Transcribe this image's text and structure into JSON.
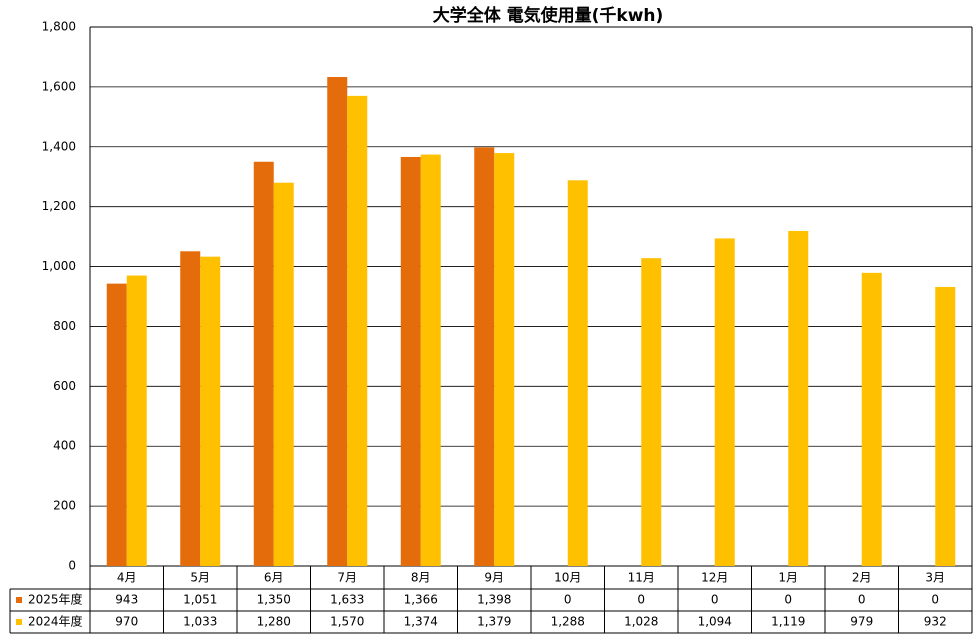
{
  "chart_data": {
    "type": "bar",
    "title": "大学全体 電気使用量(千kwh)",
    "categories": [
      "4月",
      "5月",
      "6月",
      "7月",
      "8月",
      "9月",
      "10月",
      "11月",
      "12月",
      "1月",
      "2月",
      "3月"
    ],
    "series": [
      {
        "name": "2025年度",
        "color": "#e46c0a",
        "values": [
          943,
          1051,
          1350,
          1633,
          1366,
          1398,
          0,
          0,
          0,
          0,
          0,
          0
        ],
        "value_labels": [
          "943",
          "1,051",
          "1,350",
          "1,633",
          "1,366",
          "1,398",
          "0",
          "0",
          "0",
          "0",
          "0",
          "0"
        ]
      },
      {
        "name": "2024年度",
        "color": "#ffc000",
        "values": [
          970,
          1033,
          1280,
          1570,
          1374,
          1379,
          1288,
          1028,
          1094,
          1119,
          979,
          932
        ],
        "value_labels": [
          "970",
          "1,033",
          "1,280",
          "1,570",
          "1,374",
          "1,379",
          "1,288",
          "1,028",
          "1,094",
          "1,119",
          "979",
          "932"
        ]
      }
    ],
    "ylim": [
      0,
      1800
    ],
    "yticks": [
      0,
      200,
      400,
      600,
      800,
      {
        "value": 1000,
        "label": "1,000"
      },
      {
        "value": 1200,
        "label": "1,200"
      },
      {
        "value": 1400,
        "label": "1,400"
      },
      {
        "value": 1600,
        "label": "1,600"
      },
      {
        "value": 1800,
        "label": "1,800"
      }
    ],
    "grid": true
  }
}
